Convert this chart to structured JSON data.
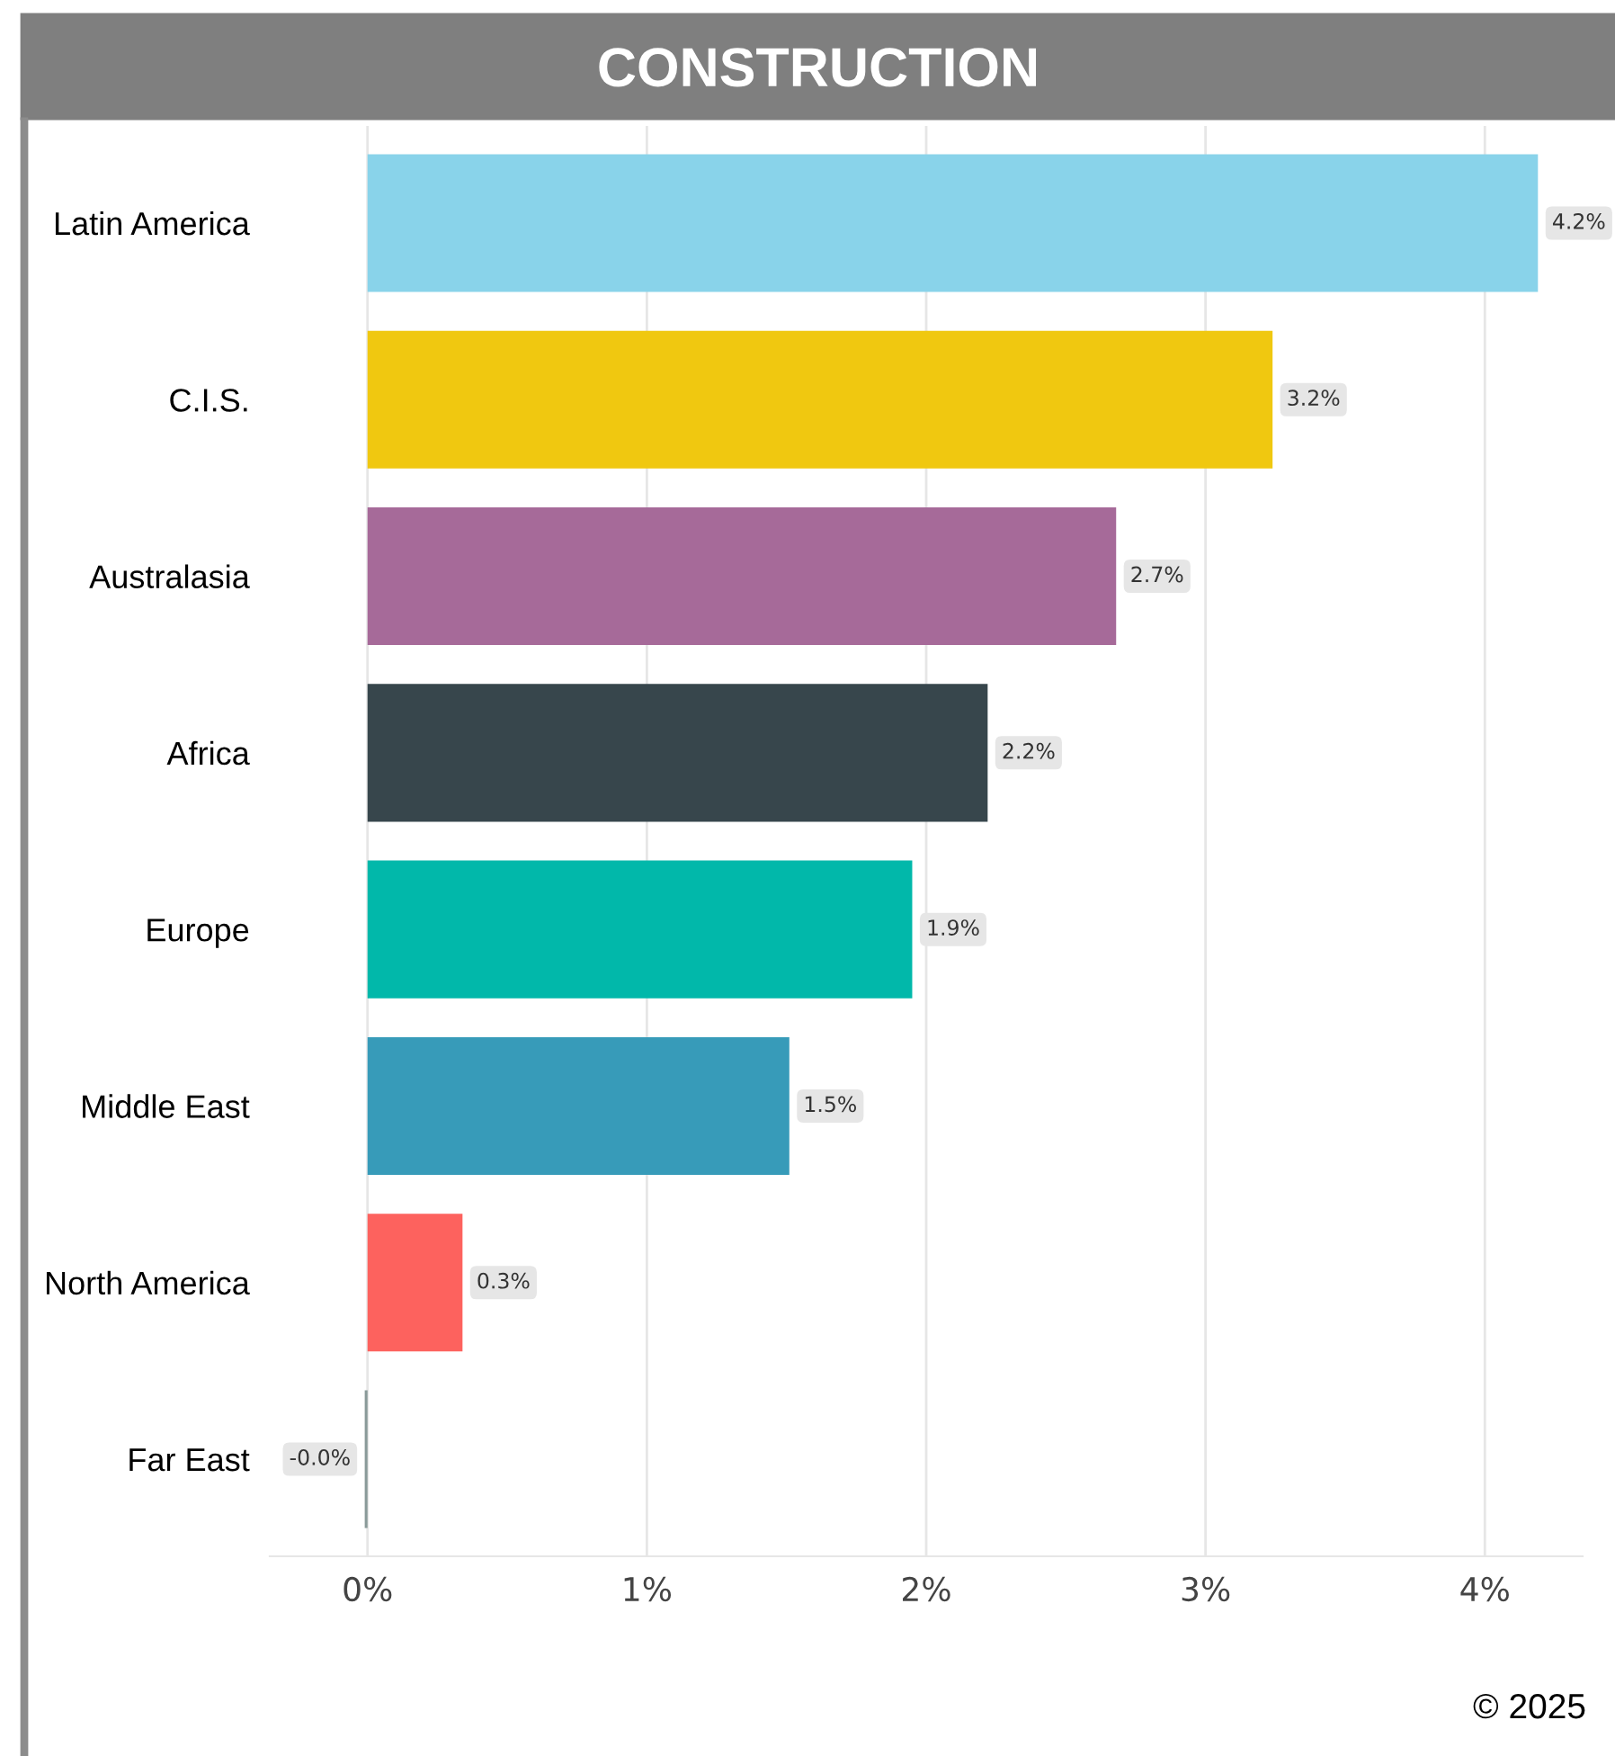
{
  "chart_data": {
    "type": "bar",
    "orientation": "horizontal",
    "title": "CONSTRUCTION",
    "categories": [
      "Latin America",
      "C.I.S.",
      "Australasia",
      "Africa",
      "Europe",
      "Middle East",
      "North America",
      "Far East"
    ],
    "values": [
      4.19,
      3.24,
      2.68,
      2.22,
      1.95,
      1.51,
      0.34,
      -0.01
    ],
    "colors": [
      "#89d3ea",
      "#f0c810",
      "#a66a99",
      "#37464c",
      "#01b8aa",
      "#379bb9",
      "#fd625e",
      "#8a9a99"
    ],
    "value_labels": [
      "4.2%",
      "3.2%",
      "2.7%",
      "2.2%",
      "1.9%",
      "1.5%",
      "0.3%",
      "-0.0%"
    ],
    "xlim": [
      -0.35,
      4.35
    ],
    "xticks": [
      {
        "value": 0,
        "label": "0%"
      },
      {
        "value": 1,
        "label": "1%"
      },
      {
        "value": 2,
        "label": "2%"
      },
      {
        "value": 3,
        "label": "3%"
      },
      {
        "value": 4,
        "label": "4%"
      }
    ],
    "grid": "x",
    "legend": false,
    "annotations": [
      "© 2025"
    ]
  }
}
